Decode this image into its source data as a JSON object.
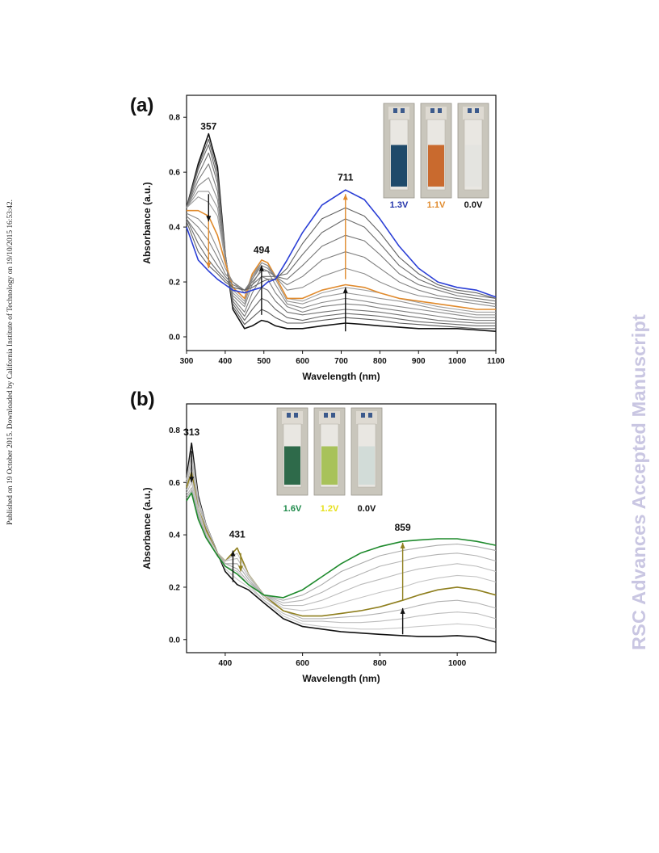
{
  "margin_note": "Published on 19 October 2015. Downloaded by California Institute of Technology on 19/10/2015 16:53:42.",
  "watermark": "RSC Advances Accepted Manuscript",
  "chart_data": [
    {
      "panel_label": "(a)",
      "type": "line",
      "xlabel": "Wavelength (nm)",
      "ylabel": "Absorbance (a.u.)",
      "xlim": [
        300,
        1100
      ],
      "ylim": [
        -0.05,
        0.88
      ],
      "xticks": [
        "300",
        "400",
        "500",
        "600",
        "700",
        "800",
        "900",
        "1000",
        "1100"
      ],
      "yticks": [
        "0.0",
        "0.2",
        "0.4",
        "0.6",
        "0.8"
      ],
      "xtick_values": [
        300,
        400,
        500,
        600,
        700,
        800,
        900,
        1000,
        1100
      ],
      "ytick_values": [
        0.0,
        0.2,
        0.4,
        0.6,
        0.8
      ],
      "annotations": [
        {
          "text": "357",
          "x": 357,
          "y": 0.755
        },
        {
          "text": "494",
          "x": 494,
          "y": 0.305
        },
        {
          "text": "711",
          "x": 711,
          "y": 0.57
        }
      ],
      "arrows": [
        {
          "x": 357,
          "y1": 0.52,
          "y2": 0.42,
          "color": "#111111"
        },
        {
          "x": 357,
          "y1": 0.42,
          "y2": 0.25,
          "color": "#e08a2c"
        },
        {
          "x": 494,
          "y1": 0.08,
          "y2": 0.26,
          "color": "#111111"
        },
        {
          "x": 711,
          "y1": 0.02,
          "y2": 0.18,
          "color": "#111111"
        },
        {
          "x": 711,
          "y1": 0.21,
          "y2": 0.52,
          "color": "#e08a2c"
        }
      ],
      "inset_labels": [
        {
          "text": "1.3V",
          "color": "#2233aa"
        },
        {
          "text": "1.1V",
          "color": "#e08a2c"
        },
        {
          "text": "0.0V",
          "color": "#111111"
        }
      ],
      "inset_liquid_colors": [
        "#1f4a6a",
        "#c96a2e",
        "#e4e4e0"
      ],
      "x": [
        300,
        330,
        357,
        380,
        400,
        420,
        450,
        470,
        494,
        510,
        530,
        560,
        600,
        650,
        711,
        760,
        800,
        850,
        900,
        950,
        1000,
        1050,
        1100
      ],
      "series": [
        {
          "name": "0.0V",
          "color": "#111111",
          "values": [
            0.47,
            0.63,
            0.74,
            0.62,
            0.3,
            0.1,
            0.03,
            0.04,
            0.06,
            0.055,
            0.04,
            0.03,
            0.03,
            0.04,
            0.05,
            0.045,
            0.04,
            0.035,
            0.03,
            0.03,
            0.03,
            0.025,
            0.02
          ]
        },
        {
          "color": "#5a5a5a",
          "values": [
            0.47,
            0.62,
            0.72,
            0.6,
            0.3,
            0.11,
            0.045,
            0.07,
            0.1,
            0.09,
            0.07,
            0.05,
            0.05,
            0.06,
            0.07,
            0.065,
            0.06,
            0.05,
            0.045,
            0.04,
            0.035,
            0.03,
            0.03
          ]
        },
        {
          "color": "#666666",
          "values": [
            0.47,
            0.61,
            0.7,
            0.58,
            0.3,
            0.12,
            0.06,
            0.1,
            0.14,
            0.13,
            0.1,
            0.07,
            0.06,
            0.075,
            0.085,
            0.08,
            0.075,
            0.065,
            0.055,
            0.05,
            0.045,
            0.04,
            0.04
          ]
        },
        {
          "color": "#727272",
          "values": [
            0.47,
            0.59,
            0.67,
            0.56,
            0.3,
            0.13,
            0.075,
            0.13,
            0.18,
            0.17,
            0.13,
            0.09,
            0.08,
            0.09,
            0.1,
            0.095,
            0.09,
            0.08,
            0.07,
            0.06,
            0.055,
            0.05,
            0.05
          ]
        },
        {
          "color": "#7e7e7e",
          "values": [
            0.47,
            0.57,
            0.63,
            0.53,
            0.29,
            0.14,
            0.09,
            0.16,
            0.22,
            0.21,
            0.16,
            0.11,
            0.09,
            0.11,
            0.12,
            0.115,
            0.105,
            0.095,
            0.085,
            0.075,
            0.065,
            0.06,
            0.06
          ]
        },
        {
          "color": "#8a8a8a",
          "values": [
            0.47,
            0.55,
            0.58,
            0.5,
            0.29,
            0.15,
            0.11,
            0.19,
            0.25,
            0.24,
            0.19,
            0.12,
            0.105,
            0.125,
            0.14,
            0.13,
            0.12,
            0.11,
            0.1,
            0.09,
            0.08,
            0.07,
            0.07
          ]
        },
        {
          "color": "#969696",
          "values": [
            0.47,
            0.53,
            0.53,
            0.47,
            0.28,
            0.16,
            0.12,
            0.21,
            0.27,
            0.26,
            0.21,
            0.13,
            0.12,
            0.145,
            0.16,
            0.15,
            0.14,
            0.13,
            0.115,
            0.1,
            0.09,
            0.08,
            0.08
          ]
        },
        {
          "color": "#a0a0a0",
          "values": [
            0.47,
            0.51,
            0.49,
            0.44,
            0.28,
            0.17,
            0.13,
            0.22,
            0.28,
            0.27,
            0.22,
            0.14,
            0.13,
            0.16,
            0.18,
            0.17,
            0.16,
            0.14,
            0.125,
            0.11,
            0.1,
            0.09,
            0.09
          ]
        },
        {
          "name": "1.1V",
          "color": "#e08a2c",
          "values": [
            0.46,
            0.46,
            0.44,
            0.37,
            0.27,
            0.18,
            0.14,
            0.23,
            0.28,
            0.27,
            0.22,
            0.14,
            0.14,
            0.17,
            0.19,
            0.18,
            0.16,
            0.14,
            0.13,
            0.12,
            0.11,
            0.1,
            0.1
          ]
        },
        {
          "color": "#8c8c8c",
          "values": [
            0.45,
            0.43,
            0.39,
            0.32,
            0.25,
            0.2,
            0.16,
            0.22,
            0.27,
            0.26,
            0.22,
            0.17,
            0.18,
            0.22,
            0.25,
            0.23,
            0.2,
            0.17,
            0.15,
            0.14,
            0.13,
            0.12,
            0.11
          ]
        },
        {
          "color": "#808080",
          "values": [
            0.44,
            0.4,
            0.35,
            0.29,
            0.23,
            0.2,
            0.17,
            0.21,
            0.26,
            0.25,
            0.22,
            0.19,
            0.22,
            0.28,
            0.31,
            0.29,
            0.25,
            0.2,
            0.17,
            0.15,
            0.14,
            0.13,
            0.12
          ]
        },
        {
          "color": "#767676",
          "values": [
            0.43,
            0.37,
            0.31,
            0.26,
            0.22,
            0.19,
            0.17,
            0.2,
            0.24,
            0.24,
            0.22,
            0.21,
            0.26,
            0.33,
            0.37,
            0.35,
            0.3,
            0.23,
            0.19,
            0.17,
            0.15,
            0.14,
            0.13
          ]
        },
        {
          "color": "#6c6c6c",
          "values": [
            0.43,
            0.34,
            0.28,
            0.24,
            0.21,
            0.18,
            0.17,
            0.19,
            0.22,
            0.22,
            0.22,
            0.23,
            0.3,
            0.38,
            0.43,
            0.4,
            0.34,
            0.26,
            0.21,
            0.18,
            0.16,
            0.15,
            0.14
          ]
        },
        {
          "color": "#626262",
          "values": [
            0.42,
            0.31,
            0.26,
            0.23,
            0.2,
            0.18,
            0.17,
            0.18,
            0.2,
            0.21,
            0.21,
            0.25,
            0.34,
            0.43,
            0.47,
            0.44,
            0.38,
            0.29,
            0.23,
            0.19,
            0.17,
            0.16,
            0.14
          ]
        },
        {
          "name": "1.3V",
          "color": "#2b3fd6",
          "values": [
            0.4,
            0.28,
            0.24,
            0.21,
            0.19,
            0.17,
            0.16,
            0.17,
            0.18,
            0.2,
            0.21,
            0.28,
            0.38,
            0.48,
            0.535,
            0.5,
            0.43,
            0.33,
            0.25,
            0.2,
            0.18,
            0.17,
            0.145
          ]
        }
      ]
    },
    {
      "panel_label": "(b)",
      "type": "line",
      "xlabel": "Wavelength (nm)",
      "ylabel": "Absorbance (a.u.)",
      "xlim": [
        300,
        1100
      ],
      "ylim": [
        -0.05,
        0.9
      ],
      "xticks": [
        "400",
        "600",
        "800",
        "1000"
      ],
      "yticks": [
        "0.0",
        "0.2",
        "0.4",
        "0.6",
        "0.8"
      ],
      "xtick_values": [
        400,
        600,
        800,
        1000
      ],
      "ytick_values": [
        0.0,
        0.2,
        0.4,
        0.6,
        0.8
      ],
      "annotations": [
        {
          "text": "313",
          "x": 313,
          "y": 0.78
        },
        {
          "text": "431",
          "x": 431,
          "y": 0.39
        },
        {
          "text": "859",
          "x": 859,
          "y": 0.415
        }
      ],
      "arrows": [
        {
          "x": 313,
          "y1": 0.72,
          "y2": 0.6,
          "color": "#111111"
        },
        {
          "x": 420,
          "y1": 0.22,
          "y2": 0.34,
          "color": "#111111"
        },
        {
          "x": 440,
          "y1": 0.33,
          "y2": 0.26,
          "color": "#8f7f1e"
        },
        {
          "x": 859,
          "y1": 0.02,
          "y2": 0.12,
          "color": "#111111"
        },
        {
          "x": 859,
          "y1": 0.15,
          "y2": 0.37,
          "color": "#8f7f1e"
        }
      ],
      "inset_labels": [
        {
          "text": "1.6V",
          "color": "#1e8a4a"
        },
        {
          "text": "1.2V",
          "color": "#e6e01a"
        },
        {
          "text": "0.0V",
          "color": "#111111"
        }
      ],
      "inset_liquid_colors": [
        "#2e6a4a",
        "#a8c25a",
        "#d2dcd8"
      ],
      "x": [
        300,
        313,
        330,
        350,
        380,
        400,
        431,
        460,
        500,
        550,
        600,
        650,
        700,
        750,
        800,
        859,
        900,
        950,
        1000,
        1050,
        1100
      ],
      "series": [
        {
          "name": "0.0V",
          "color": "#111111",
          "values": [
            0.62,
            0.75,
            0.55,
            0.44,
            0.33,
            0.26,
            0.21,
            0.19,
            0.14,
            0.08,
            0.05,
            0.04,
            0.03,
            0.025,
            0.02,
            0.015,
            0.012,
            0.012,
            0.015,
            0.01,
            -0.01
          ]
        },
        {
          "color": "#c8c8c8",
          "values": [
            0.61,
            0.72,
            0.54,
            0.44,
            0.33,
            0.27,
            0.23,
            0.2,
            0.15,
            0.09,
            0.06,
            0.05,
            0.045,
            0.04,
            0.04,
            0.045,
            0.05,
            0.055,
            0.06,
            0.055,
            0.04
          ]
        },
        {
          "color": "#bdbdbd",
          "values": [
            0.6,
            0.7,
            0.53,
            0.43,
            0.33,
            0.28,
            0.26,
            0.21,
            0.15,
            0.1,
            0.07,
            0.07,
            0.065,
            0.065,
            0.07,
            0.08,
            0.09,
            0.1,
            0.105,
            0.1,
            0.08
          ]
        },
        {
          "color": "#b2b2b2",
          "values": [
            0.59,
            0.67,
            0.52,
            0.43,
            0.33,
            0.29,
            0.29,
            0.23,
            0.16,
            0.11,
            0.08,
            0.08,
            0.085,
            0.09,
            0.1,
            0.115,
            0.13,
            0.145,
            0.15,
            0.14,
            0.12
          ]
        },
        {
          "name": "1.2V",
          "color": "#8f7f1e",
          "values": [
            0.58,
            0.64,
            0.5,
            0.42,
            0.33,
            0.3,
            0.35,
            0.25,
            0.17,
            0.11,
            0.09,
            0.09,
            0.1,
            0.11,
            0.125,
            0.15,
            0.17,
            0.19,
            0.2,
            0.19,
            0.17
          ]
        },
        {
          "color": "#c3c3c3",
          "values": [
            0.57,
            0.62,
            0.5,
            0.41,
            0.33,
            0.3,
            0.33,
            0.25,
            0.17,
            0.12,
            0.11,
            0.12,
            0.14,
            0.16,
            0.18,
            0.2,
            0.22,
            0.235,
            0.245,
            0.24,
            0.22
          ]
        },
        {
          "color": "#bbbbbb",
          "values": [
            0.56,
            0.6,
            0.49,
            0.41,
            0.33,
            0.3,
            0.31,
            0.24,
            0.17,
            0.13,
            0.13,
            0.15,
            0.18,
            0.21,
            0.23,
            0.255,
            0.27,
            0.28,
            0.29,
            0.28,
            0.26
          ]
        },
        {
          "color": "#b3b3b3",
          "values": [
            0.55,
            0.58,
            0.48,
            0.4,
            0.32,
            0.29,
            0.29,
            0.23,
            0.17,
            0.14,
            0.15,
            0.18,
            0.22,
            0.25,
            0.28,
            0.3,
            0.315,
            0.325,
            0.33,
            0.32,
            0.3
          ]
        },
        {
          "color": "#aaaaaa",
          "values": [
            0.54,
            0.57,
            0.47,
            0.4,
            0.32,
            0.29,
            0.27,
            0.22,
            0.17,
            0.15,
            0.17,
            0.21,
            0.26,
            0.29,
            0.32,
            0.34,
            0.35,
            0.36,
            0.365,
            0.355,
            0.34
          ]
        },
        {
          "name": "1.6V",
          "color": "#1e8a2c",
          "values": [
            0.53,
            0.56,
            0.46,
            0.39,
            0.32,
            0.28,
            0.25,
            0.21,
            0.17,
            0.16,
            0.19,
            0.24,
            0.29,
            0.33,
            0.355,
            0.375,
            0.38,
            0.385,
            0.385,
            0.375,
            0.36
          ]
        }
      ]
    }
  ]
}
